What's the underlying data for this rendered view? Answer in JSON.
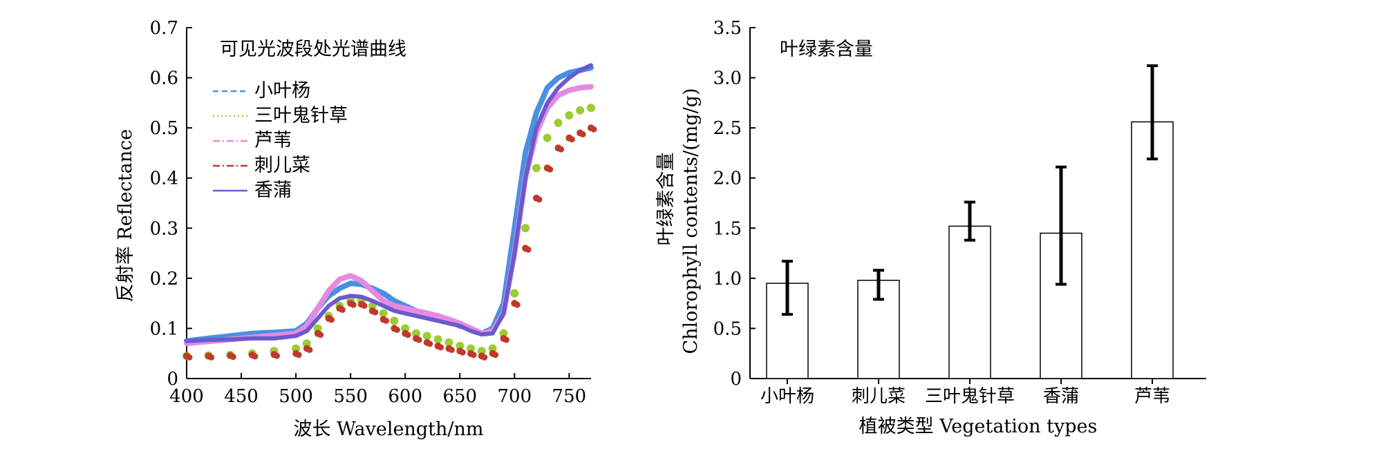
{
  "chart_data": [
    {
      "type": "line",
      "title": "可见光波段处光谱曲线",
      "xlabel": "波长 Wavelength/nm",
      "ylabel": "反射率 Reflectance",
      "xlim": [
        400,
        770
      ],
      "ylim": [
        0,
        0.7
      ],
      "xticks": [
        "400",
        "450",
        "500",
        "550",
        "600",
        "650",
        "700",
        "750"
      ],
      "yticks": [
        "0",
        "0.1",
        "0.2",
        "0.3",
        "0.4",
        "0.5",
        "0.6",
        "0.7"
      ],
      "legend_position": "top-left",
      "series": [
        {
          "name": "小叶杨",
          "color": "#4a90e2",
          "style": "dashed",
          "x": [
            400,
            420,
            440,
            460,
            480,
            500,
            510,
            520,
            530,
            540,
            550,
            560,
            570,
            580,
            590,
            600,
            610,
            620,
            630,
            640,
            650,
            660,
            670,
            680,
            690,
            700,
            710,
            720,
            730,
            740,
            750,
            760,
            770
          ],
          "values": [
            0.075,
            0.08,
            0.085,
            0.09,
            0.092,
            0.095,
            0.11,
            0.14,
            0.165,
            0.18,
            0.19,
            0.188,
            0.18,
            0.17,
            0.155,
            0.145,
            0.135,
            0.128,
            0.122,
            0.115,
            0.105,
            0.1,
            0.09,
            0.1,
            0.15,
            0.3,
            0.45,
            0.53,
            0.58,
            0.6,
            0.61,
            0.615,
            0.62
          ]
        },
        {
          "name": "三叶鬼针草",
          "color": "#9acd32",
          "style": "dotted",
          "x": [
            400,
            420,
            440,
            460,
            480,
            500,
            510,
            520,
            530,
            540,
            550,
            560,
            570,
            580,
            590,
            600,
            610,
            620,
            630,
            640,
            650,
            660,
            670,
            680,
            690,
            700,
            710,
            720,
            730,
            740,
            750,
            760,
            770
          ],
          "values": [
            0.045,
            0.046,
            0.047,
            0.05,
            0.055,
            0.06,
            0.07,
            0.1,
            0.125,
            0.145,
            0.155,
            0.155,
            0.145,
            0.13,
            0.115,
            0.1,
            0.09,
            0.085,
            0.078,
            0.072,
            0.065,
            0.06,
            0.055,
            0.06,
            0.09,
            0.17,
            0.3,
            0.42,
            0.48,
            0.51,
            0.525,
            0.535,
            0.54
          ]
        },
        {
          "name": "芦苇",
          "color": "#e58ae0",
          "style": "dash-dot",
          "x": [
            400,
            420,
            440,
            460,
            480,
            500,
            510,
            520,
            530,
            540,
            550,
            560,
            570,
            580,
            590,
            600,
            610,
            620,
            630,
            640,
            650,
            660,
            670,
            680,
            690,
            700,
            710,
            720,
            730,
            740,
            750,
            760,
            770
          ],
          "values": [
            0.07,
            0.074,
            0.078,
            0.082,
            0.086,
            0.09,
            0.105,
            0.14,
            0.175,
            0.198,
            0.205,
            0.195,
            0.175,
            0.155,
            0.145,
            0.14,
            0.135,
            0.13,
            0.125,
            0.118,
            0.11,
            0.1,
            0.09,
            0.095,
            0.13,
            0.25,
            0.4,
            0.49,
            0.54,
            0.565,
            0.575,
            0.58,
            0.582
          ]
        },
        {
          "name": "刺儿菜",
          "color": "#c0392b",
          "style": "dash-dot",
          "x": [
            400,
            420,
            440,
            460,
            480,
            500,
            510,
            520,
            530,
            540,
            550,
            560,
            570,
            580,
            590,
            600,
            610,
            620,
            630,
            640,
            650,
            660,
            670,
            680,
            690,
            700,
            710,
            720,
            730,
            740,
            750,
            760,
            770
          ],
          "values": [
            0.045,
            0.045,
            0.046,
            0.047,
            0.048,
            0.05,
            0.06,
            0.09,
            0.12,
            0.14,
            0.15,
            0.148,
            0.135,
            0.118,
            0.1,
            0.09,
            0.08,
            0.072,
            0.065,
            0.06,
            0.055,
            0.05,
            0.045,
            0.05,
            0.08,
            0.15,
            0.26,
            0.36,
            0.42,
            0.46,
            0.48,
            0.49,
            0.5
          ]
        },
        {
          "name": "香蒲",
          "color": "#6a5acd",
          "style": "solid",
          "x": [
            400,
            420,
            440,
            460,
            480,
            500,
            510,
            520,
            530,
            540,
            550,
            560,
            570,
            580,
            590,
            600,
            610,
            620,
            630,
            640,
            650,
            660,
            670,
            680,
            690,
            700,
            710,
            720,
            730,
            740,
            750,
            760,
            770
          ],
          "values": [
            0.075,
            0.077,
            0.078,
            0.08,
            0.08,
            0.085,
            0.095,
            0.12,
            0.145,
            0.16,
            0.165,
            0.163,
            0.155,
            0.145,
            0.135,
            0.13,
            0.125,
            0.12,
            0.115,
            0.11,
            0.105,
            0.095,
            0.088,
            0.09,
            0.13,
            0.25,
            0.4,
            0.5,
            0.55,
            0.58,
            0.6,
            0.615,
            0.625
          ]
        }
      ]
    },
    {
      "type": "bar",
      "title": "叶绿素含量",
      "xlabel": "植被类型 Vegetation types",
      "ylabel_cn": "叶绿素含量",
      "ylabel": "Chlorophyll contents/(mg/g)",
      "ylim": [
        0,
        3.5
      ],
      "yticks": [
        "0",
        "0.5",
        "1.0",
        "1.5",
        "2.0",
        "2.5",
        "3.0",
        "3.5"
      ],
      "categories": [
        "小叶杨",
        "刺儿菜",
        "三叶鬼针草",
        "香蒲",
        "芦苇"
      ],
      "values": [
        0.95,
        0.98,
        1.52,
        1.45,
        2.56
      ],
      "error_low": [
        0.64,
        0.79,
        1.38,
        0.94,
        2.19
      ],
      "error_high": [
        1.17,
        1.08,
        1.76,
        2.11,
        3.12
      ]
    }
  ]
}
